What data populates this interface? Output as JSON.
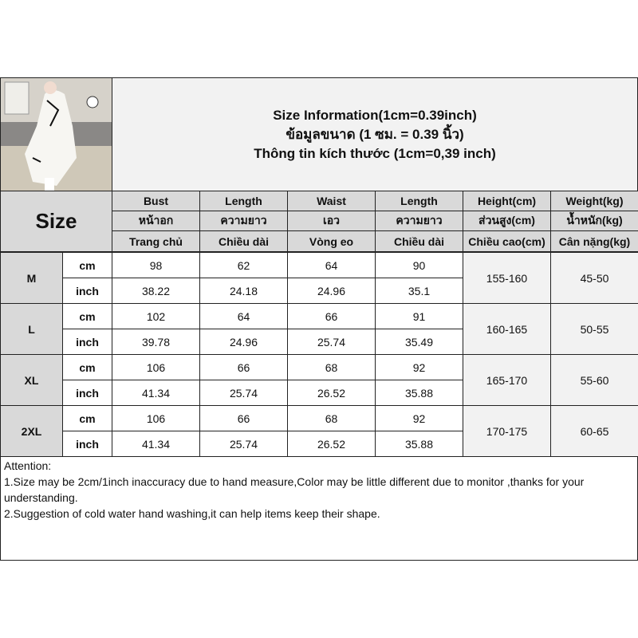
{
  "title": {
    "en": "Size Information(1cm=0.39inch)",
    "th": "ข้อมูลขนาด (1 ซม. = 0.39 นิ้ว)",
    "vi": "Thông tin kích thước (1cm=0,39 inch)"
  },
  "size_label": "Size",
  "columns": [
    {
      "en": "Bust",
      "th": "หน้าอก",
      "vi": "Trang chủ"
    },
    {
      "en": "Length",
      "th": "ความยาว",
      "vi": "Chiều dài"
    },
    {
      "en": "Waist",
      "th": "เอว",
      "vi": "Vòng eo"
    },
    {
      "en": "Length",
      "th": "ความยาว",
      "vi": "Chiều dài"
    },
    {
      "en": "Height(cm)",
      "th": "ส่วนสูง(cm)",
      "vi": "Chiều cao(cm)"
    },
    {
      "en": "Weight(kg)",
      "th": "น้ำหนัก(kg)",
      "vi": "Cân nặng(kg)"
    }
  ],
  "units": {
    "cm": "cm",
    "inch": "inch"
  },
  "sizes": [
    {
      "size": "M",
      "cm": [
        "98",
        "62",
        "64",
        "90"
      ],
      "inch": [
        "38.22",
        "24.18",
        "24.96",
        "35.1"
      ],
      "height": "155-160",
      "weight": "45-50"
    },
    {
      "size": "L",
      "cm": [
        "102",
        "64",
        "66",
        "91"
      ],
      "inch": [
        "39.78",
        "24.96",
        "25.74",
        "35.49"
      ],
      "height": "160-165",
      "weight": "50-55"
    },
    {
      "size": "XL",
      "cm": [
        "106",
        "66",
        "68",
        "92"
      ],
      "inch": [
        "41.34",
        "25.74",
        "26.52",
        "35.88"
      ],
      "height": "165-170",
      "weight": "55-60"
    },
    {
      "size": "2XL",
      "cm": [
        "106",
        "66",
        "68",
        "92"
      ],
      "inch": [
        "41.34",
        "25.74",
        "26.52",
        "35.88"
      ],
      "height": "170-175",
      "weight": "60-65"
    }
  ],
  "attention": {
    "heading": "Attention:",
    "line1": "1.Size may be 2cm/1inch inaccuracy due to hand measure,Color may be little different due to monitor ,thanks for your understanding.",
    "line2": "2.Suggestion of cold water hand washing,it can help items keep their shape."
  }
}
